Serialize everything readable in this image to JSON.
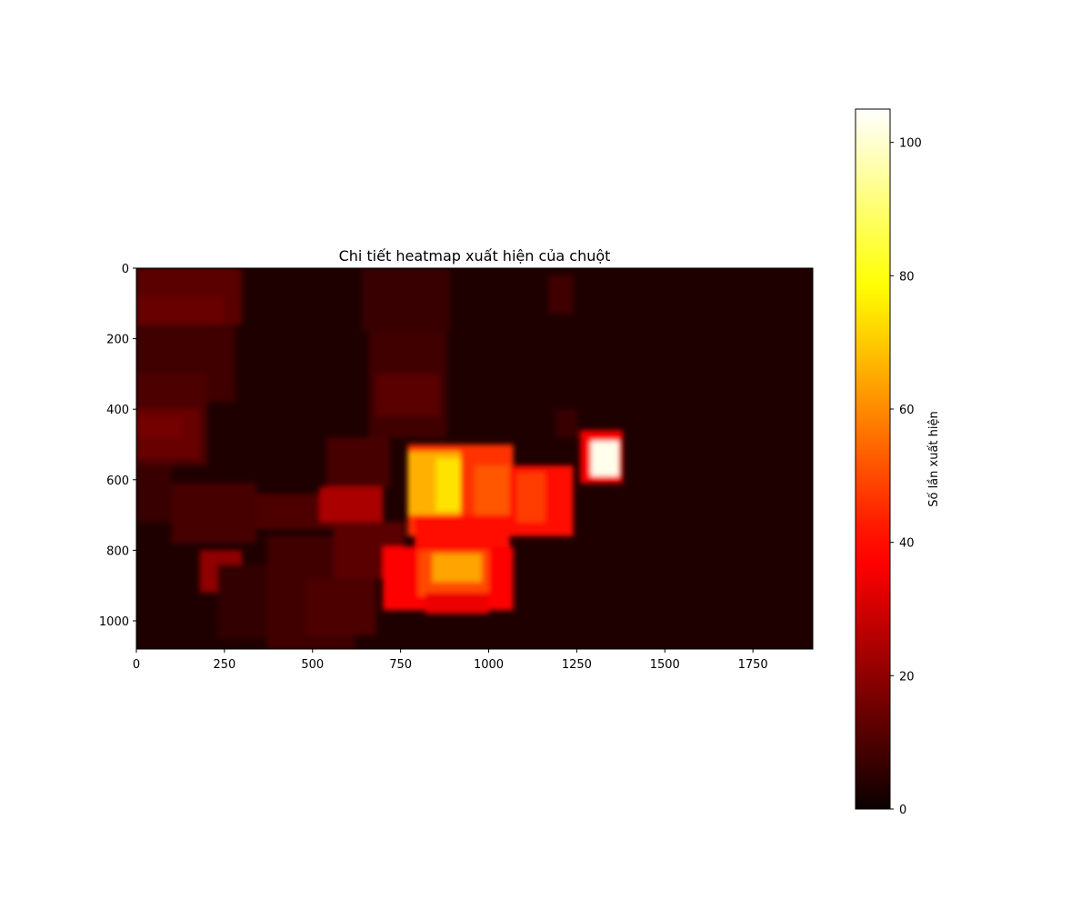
{
  "chart_data": {
    "type": "heatmap",
    "title": "Chi tiết heatmap xuất hiện của chuột",
    "xlabel": "",
    "ylabel": "",
    "xlim": [
      0,
      1920
    ],
    "ylim": [
      1080,
      0
    ],
    "x_ticks": [
      0,
      250,
      500,
      750,
      1000,
      1250,
      1500,
      1750
    ],
    "y_ticks": [
      0,
      200,
      400,
      600,
      800,
      1000
    ],
    "colormap": "hot",
    "colorbar": {
      "label": "Số lần xuất hiện",
      "range": [
        0,
        105
      ],
      "ticks": [
        0,
        20,
        40,
        60,
        80,
        100
      ]
    },
    "background_value": 3,
    "regions": [
      {
        "x0": 0,
        "x1": 300,
        "y0": 0,
        "y1": 160,
        "value": 12
      },
      {
        "x0": 0,
        "x1": 250,
        "y0": 80,
        "y1": 160,
        "value": 14
      },
      {
        "x0": 0,
        "x1": 280,
        "y0": 160,
        "y1": 380,
        "value": 8
      },
      {
        "x0": 0,
        "x1": 200,
        "y0": 300,
        "y1": 560,
        "value": 10
      },
      {
        "x0": 0,
        "x1": 180,
        "y0": 400,
        "y1": 540,
        "value": 14
      },
      {
        "x0": 0,
        "x1": 130,
        "y0": 420,
        "y1": 480,
        "value": 16
      },
      {
        "x0": 0,
        "x1": 100,
        "y0": 560,
        "y1": 720,
        "value": 7
      },
      {
        "x0": 100,
        "x1": 340,
        "y0": 610,
        "y1": 780,
        "value": 9
      },
      {
        "x0": 180,
        "x1": 300,
        "y0": 800,
        "y1": 920,
        "value": 20
      },
      {
        "x0": 230,
        "x1": 400,
        "y0": 840,
        "y1": 1050,
        "value": 6
      },
      {
        "x0": 370,
        "x1": 620,
        "y0": 760,
        "y1": 1080,
        "value": 8
      },
      {
        "x0": 480,
        "x1": 680,
        "y0": 880,
        "y1": 1040,
        "value": 10
      },
      {
        "x0": 340,
        "x1": 580,
        "y0": 640,
        "y1": 740,
        "value": 10
      },
      {
        "x0": 520,
        "x1": 700,
        "y0": 620,
        "y1": 720,
        "value": 24
      },
      {
        "x0": 540,
        "x1": 720,
        "y0": 480,
        "y1": 620,
        "value": 9
      },
      {
        "x0": 560,
        "x1": 760,
        "y0": 720,
        "y1": 880,
        "value": 12
      },
      {
        "x0": 640,
        "x1": 890,
        "y0": 0,
        "y1": 180,
        "value": 7
      },
      {
        "x0": 660,
        "x1": 880,
        "y0": 180,
        "y1": 480,
        "value": 8
      },
      {
        "x0": 680,
        "x1": 860,
        "y0": 300,
        "y1": 420,
        "value": 12
      },
      {
        "x0": 1170,
        "x1": 1240,
        "y0": 20,
        "y1": 130,
        "value": 8
      },
      {
        "x0": 1190,
        "x1": 1250,
        "y0": 400,
        "y1": 480,
        "value": 7
      },
      {
        "x0": 770,
        "x1": 1070,
        "y0": 500,
        "y1": 760,
        "value": 46
      },
      {
        "x0": 770,
        "x1": 920,
        "y0": 520,
        "y1": 700,
        "value": 66
      },
      {
        "x0": 850,
        "x1": 920,
        "y0": 540,
        "y1": 690,
        "value": 74
      },
      {
        "x0": 960,
        "x1": 1060,
        "y0": 560,
        "y1": 720,
        "value": 52
      },
      {
        "x0": 1060,
        "x1": 1240,
        "y0": 560,
        "y1": 760,
        "value": 40
      },
      {
        "x0": 1080,
        "x1": 1160,
        "y0": 580,
        "y1": 720,
        "value": 48
      },
      {
        "x0": 790,
        "x1": 1060,
        "y0": 700,
        "y1": 800,
        "value": 40
      },
      {
        "x0": 700,
        "x1": 1070,
        "y0": 790,
        "y1": 970,
        "value": 38
      },
      {
        "x0": 800,
        "x1": 1000,
        "y0": 800,
        "y1": 930,
        "value": 50
      },
      {
        "x0": 840,
        "x1": 980,
        "y0": 810,
        "y1": 890,
        "value": 64
      },
      {
        "x0": 820,
        "x1": 1000,
        "y0": 920,
        "y1": 980,
        "value": 34
      },
      {
        "x0": 1260,
        "x1": 1380,
        "y0": 460,
        "y1": 610,
        "value": 36
      },
      {
        "x0": 1290,
        "x1": 1370,
        "y0": 490,
        "y1": 590,
        "value": 103
      }
    ]
  }
}
